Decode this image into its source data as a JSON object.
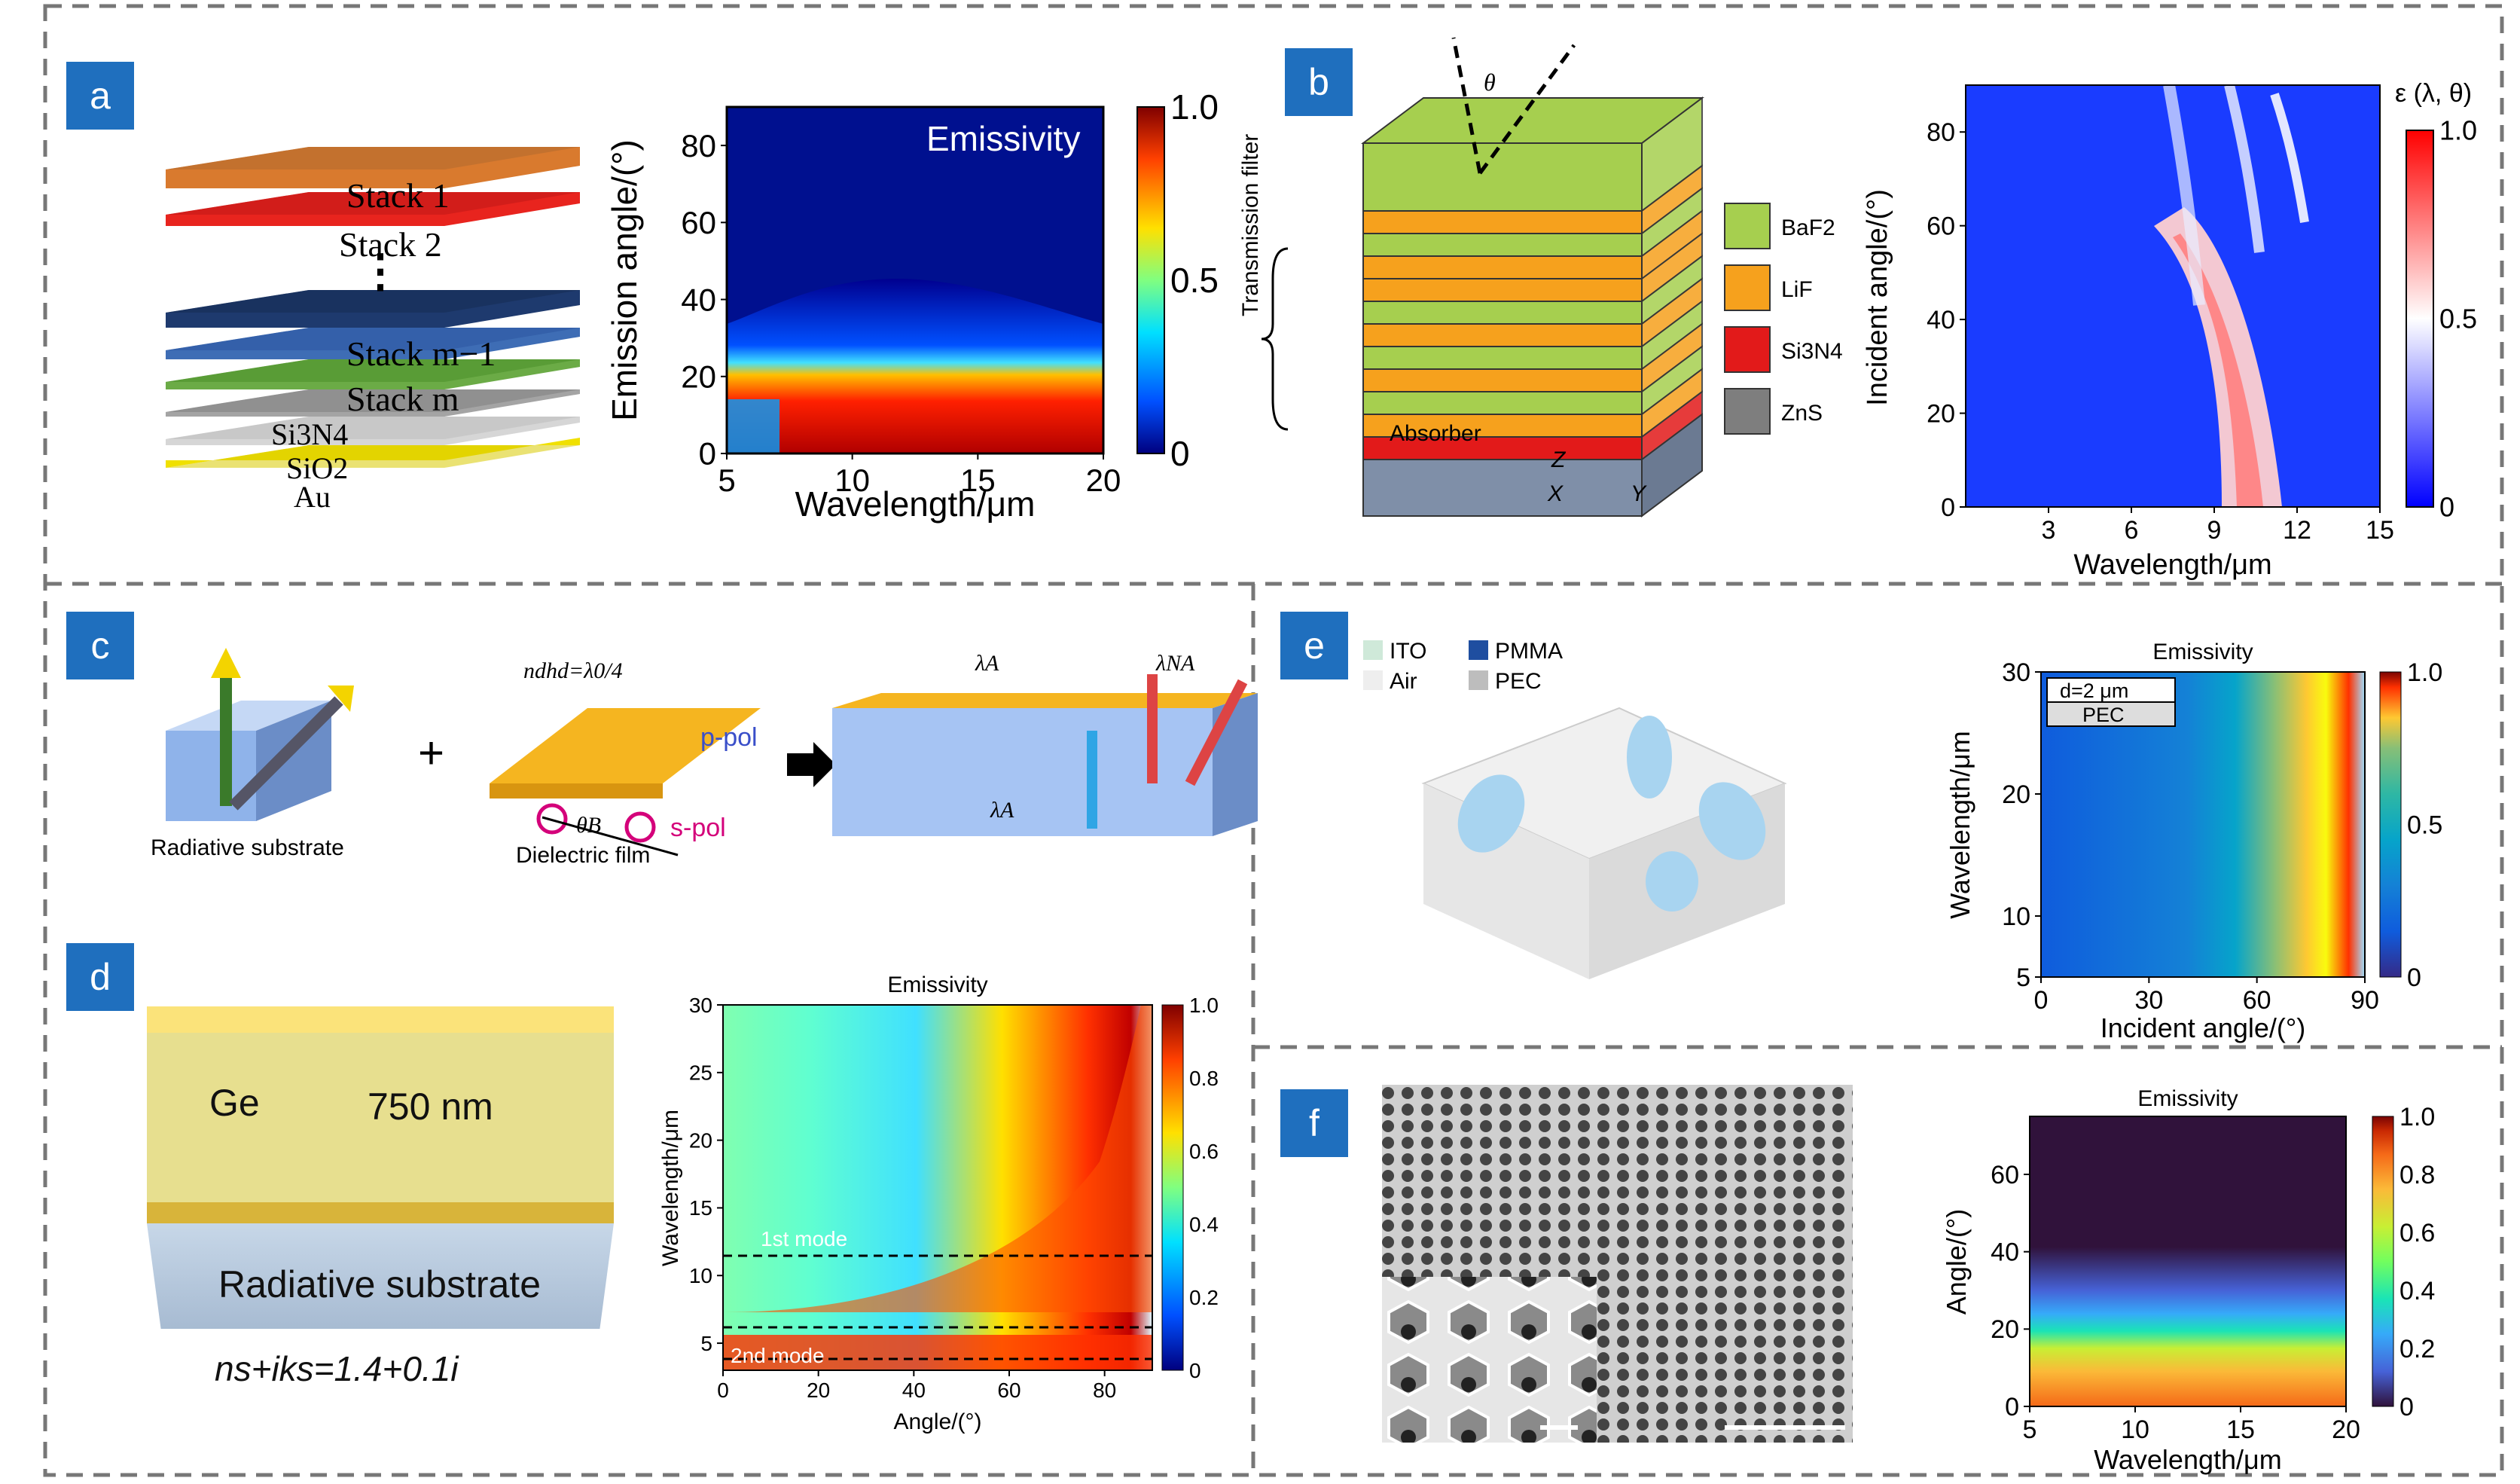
{
  "panels": {
    "a": {
      "tag": "a",
      "layers": [
        "Stack 1",
        "Stack 2",
        "Stack m−1",
        "Stack m",
        "Si3N4",
        "SiO2",
        "Au"
      ],
      "layer_colors": [
        "#d97a2e",
        "#e8241e",
        "#1e3a6e",
        "#3e6db5",
        "#6bab46",
        "#a4a4a4",
        "#d6d6d6",
        "#f0e000"
      ]
    },
    "b": {
      "tag": "b",
      "legend": [
        "BaF2",
        "LiF",
        "Si3N4",
        "ZnS"
      ],
      "legend_colors": [
        "#a6cf4f",
        "#f6a11d",
        "#e21a1a",
        "#7e7e7e"
      ],
      "filter_label": "Transmission filter",
      "absorber_label": "Absorber",
      "axes": [
        "Z",
        "Y",
        "X"
      ],
      "theta": "θ"
    },
    "c": {
      "tag": "c",
      "substrate_label": "Radiative substrate",
      "film_label": "Dielectric film",
      "ppol": "p-pol",
      "spol": "s-pol",
      "eq": "ndhd=λ0/4",
      "theta_b": "θB",
      "lambda_a": "λA",
      "lambda_na": "λNA"
    },
    "d": {
      "tag": "d",
      "ge_label": "Ge",
      "thickness": "750 nm",
      "substrate_label": "Radiative substrate",
      "index": "ns+iks=1.4+0.1i",
      "mode1": "1st mode",
      "mode2": "2nd mode"
    },
    "e": {
      "tag": "e",
      "legend": [
        "ITO",
        "PMMA",
        "Air",
        "PEC"
      ],
      "legend_colors": [
        "#cfe9d9",
        "#1f4ea0",
        "#eeeeee",
        "#bdbdbd"
      ],
      "inset1": "d=2 μm",
      "inset2": "PEC"
    },
    "f": {
      "tag": "f"
    }
  },
  "chart_data": [
    {
      "id": "a",
      "type": "heatmap",
      "title": "Emissivity",
      "xlabel": "Wavelength/μm",
      "ylabel": "Emission angle/(°)",
      "xlim": [
        5,
        20
      ],
      "ylim": [
        0,
        90
      ],
      "xticks": [
        5,
        10,
        15,
        20
      ],
      "yticks": [
        0,
        20,
        40,
        60,
        80
      ],
      "colorbar": {
        "ticks": [
          "0",
          "0.5",
          "1.0"
        ],
        "range": [
          0,
          1
        ],
        "colors": [
          "#00007f",
          "#0050ff",
          "#00e0ff",
          "#80ff80",
          "#ffe000",
          "#ff4000",
          "#7f0000"
        ]
      }
    },
    {
      "id": "b",
      "type": "heatmap",
      "title": "",
      "colorbar_label": "ε (λ, θ)",
      "xlabel": "Wavelength/μm",
      "ylabel": "Incident angle/(°)",
      "xlim": [
        0,
        15
      ],
      "ylim": [
        0,
        90
      ],
      "xticks": [
        3,
        6,
        9,
        12,
        15
      ],
      "yticks": [
        0,
        20,
        40,
        60,
        80
      ],
      "colorbar": {
        "ticks": [
          "0",
          "0.5",
          "1.0"
        ],
        "range": [
          0,
          1
        ],
        "colors": [
          "#0000ff",
          "#ffffff",
          "#ff0000"
        ]
      }
    },
    {
      "id": "d",
      "type": "heatmap",
      "title": "Emissivity",
      "xlabel": "Angle/(°)",
      "ylabel": "Wavelength/μm",
      "xlim": [
        0,
        90
      ],
      "ylim": [
        3,
        30
      ],
      "xticks": [
        0,
        20,
        40,
        60,
        80
      ],
      "yticks": [
        5,
        10,
        15,
        20,
        25,
        30
      ],
      "colorbar": {
        "ticks": [
          "0",
          "0.2",
          "0.4",
          "0.6",
          "0.8",
          "1.0"
        ],
        "range": [
          0,
          1
        ],
        "colors": [
          "#00007f",
          "#0050ff",
          "#00e0ff",
          "#80ff80",
          "#ffe000",
          "#ff4000",
          "#7f0000"
        ]
      }
    },
    {
      "id": "e",
      "type": "heatmap",
      "title": "Emissivity",
      "xlabel": "Incident angle/(°)",
      "ylabel": "Wavelength/μm",
      "xlim": [
        0,
        90
      ],
      "ylim": [
        5,
        30
      ],
      "xticks": [
        0,
        30,
        60,
        90
      ],
      "yticks": [
        5,
        10,
        20,
        30
      ],
      "colorbar": {
        "ticks": [
          "0",
          "0.5",
          "1.0"
        ],
        "range": [
          0,
          1
        ],
        "colors": [
          "#352a87",
          "#0f5cdd",
          "#1481d6",
          "#06a4ca",
          "#2eb7a4",
          "#87bf77",
          "#d1bb59",
          "#fec832",
          "#f9fb0e"
        ]
      }
    },
    {
      "id": "f",
      "type": "heatmap",
      "title": "Emissivity",
      "xlabel": "Wavelength/μm",
      "ylabel": "Angle/(°)",
      "xlim": [
        5,
        20
      ],
      "ylim": [
        0,
        75
      ],
      "xticks": [
        5,
        10,
        15,
        20
      ],
      "yticks": [
        0,
        20,
        40,
        60
      ],
      "colorbar": {
        "ticks": [
          "0",
          "0.2",
          "0.4",
          "0.6",
          "0.8",
          "1.0"
        ],
        "range": [
          0,
          1
        ],
        "colors": [
          "#30123b",
          "#4662d7",
          "#36aaf9",
          "#1ae4b6",
          "#72fe5e",
          "#c8ef34",
          "#fbb938",
          "#f56918",
          "#c92903",
          "#7a0403"
        ]
      }
    }
  ]
}
